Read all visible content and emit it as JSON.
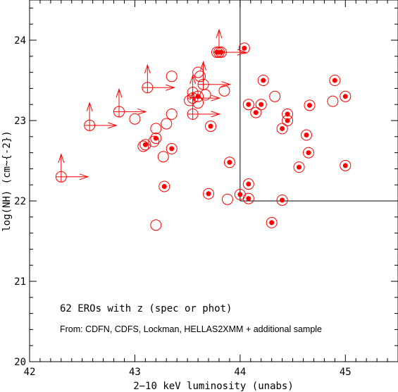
{
  "chart_data": {
    "type": "scatter",
    "xlabel": "2−10 keV luminosity (unabs)",
    "ylabel": "log(NH) (cm~{-2})",
    "xlim": [
      42,
      45.5
    ],
    "ylim": [
      20,
      24.5
    ],
    "x_ticks": [
      42,
      43,
      44,
      45
    ],
    "y_ticks": [
      20,
      21,
      22,
      23,
      24
    ],
    "annotations": [
      "62 EROs with z (spec or phot)",
      "From: CDFN, CDFS, Lockman, HELLAS2XMM + additional sample"
    ],
    "reference_lines": {
      "x": 44,
      "y": 22
    },
    "colors": {
      "points": "#ff0000",
      "axes": "#000000"
    },
    "series": [
      {
        "marker": "circle-with-dot",
        "points": [
          [
            43.1,
            22.7
          ],
          [
            43.2,
            22.78
          ],
          [
            43.35,
            22.65
          ],
          [
            43.28,
            22.18
          ],
          [
            43.6,
            23.3
          ],
          [
            43.7,
            22.09
          ],
          [
            43.78,
            23.85
          ],
          [
            43.82,
            23.85
          ],
          [
            43.72,
            22.93
          ],
          [
            43.9,
            22.48
          ],
          [
            44.04,
            23.9
          ],
          [
            44.0,
            22.08
          ],
          [
            44.08,
            23.2
          ],
          [
            44.08,
            22.21
          ],
          [
            44.08,
            22.03
          ],
          [
            44.15,
            23.1
          ],
          [
            44.2,
            23.2
          ],
          [
            44.22,
            23.5
          ],
          [
            44.3,
            21.73
          ],
          [
            44.4,
            22.9
          ],
          [
            44.45,
            23.08
          ],
          [
            44.45,
            23.0
          ],
          [
            44.4,
            22.01
          ],
          [
            44.56,
            22.42
          ],
          [
            44.63,
            22.82
          ],
          [
            44.65,
            22.6
          ],
          [
            44.66,
            23.19
          ],
          [
            44.9,
            23.5
          ],
          [
            45.0,
            23.3
          ],
          [
            45.0,
            22.44
          ]
        ]
      },
      {
        "marker": "open-circle",
        "points": [
          [
            43.0,
            23.02
          ],
          [
            43.2,
            22.9
          ],
          [
            43.08,
            22.68
          ],
          [
            43.18,
            22.74
          ],
          [
            43.27,
            22.55
          ],
          [
            43.3,
            22.96
          ],
          [
            43.35,
            23.08
          ],
          [
            43.35,
            23.55
          ],
          [
            43.55,
            23.35
          ],
          [
            43.6,
            23.22
          ],
          [
            43.6,
            23.6
          ],
          [
            43.62,
            23.55
          ],
          [
            43.67,
            23.32
          ],
          [
            43.52,
            23.25
          ],
          [
            43.85,
            23.37
          ],
          [
            43.88,
            22.02
          ],
          [
            43.2,
            21.7
          ],
          [
            44.33,
            23.3
          ],
          [
            44.88,
            23.24
          ]
        ]
      },
      {
        "marker": "lower-limit",
        "points": [
          [
            42.3,
            22.3
          ],
          [
            42.57,
            22.94
          ],
          [
            42.85,
            23.11
          ],
          [
            43.12,
            23.41
          ],
          [
            43.55,
            23.08
          ],
          [
            43.55,
            23.28
          ],
          [
            43.65,
            23.45
          ],
          [
            43.8,
            23.85
          ]
        ]
      }
    ]
  }
}
